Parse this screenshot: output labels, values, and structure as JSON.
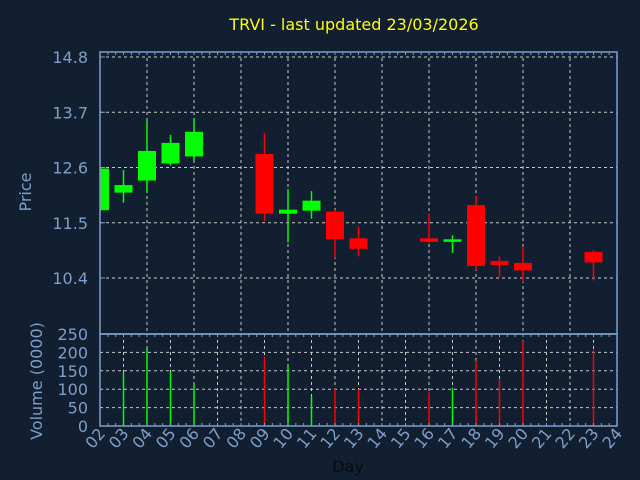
{
  "chart_data": [
    {
      "type": "candlestick",
      "title": "TRVI - last updated 23/03/2026",
      "ylabel": "Price",
      "ylim": [
        10.4,
        14.8
      ],
      "yticks": [
        "10.4",
        "11.5",
        "12.6",
        "13.7",
        "14.8"
      ],
      "grid": true,
      "colors": {
        "up": "#00ff00",
        "down": "#ff0000"
      },
      "candles": [
        {
          "day": "02",
          "open": 11.75,
          "high": 12.6,
          "low": 11.72,
          "close": 12.58
        },
        {
          "day": "03",
          "open": 12.1,
          "high": 12.55,
          "low": 11.9,
          "close": 12.25
        },
        {
          "day": "04",
          "open": 12.34,
          "high": 13.53,
          "low": 12.1,
          "close": 12.93
        },
        {
          "day": "05",
          "open": 12.68,
          "high": 13.25,
          "low": 12.64,
          "close": 13.09
        },
        {
          "day": "06",
          "open": 12.82,
          "high": 13.58,
          "low": 12.74,
          "close": 13.31
        },
        {
          "day": "09",
          "open": 12.87,
          "high": 13.29,
          "low": 11.54,
          "close": 11.68
        },
        {
          "day": "10",
          "open": 11.68,
          "high": 12.17,
          "low": 11.11,
          "close": 11.76
        },
        {
          "day": "11",
          "open": 11.74,
          "high": 12.13,
          "low": 11.58,
          "close": 11.94
        },
        {
          "day": "12",
          "open": 11.72,
          "high": 11.76,
          "low": 10.8,
          "close": 11.17
        },
        {
          "day": "13",
          "open": 11.19,
          "high": 11.42,
          "low": 10.83,
          "close": 10.98
        },
        {
          "day": "16",
          "open": 11.19,
          "high": 11.68,
          "low": 11.1,
          "close": 11.12
        },
        {
          "day": "17",
          "open": 11.12,
          "high": 11.25,
          "low": 10.9,
          "close": 11.17
        },
        {
          "day": "18",
          "open": 11.85,
          "high": 12.03,
          "low": 10.55,
          "close": 10.64
        },
        {
          "day": "19",
          "open": 10.74,
          "high": 10.83,
          "low": 10.42,
          "close": 10.66
        },
        {
          "day": "20",
          "open": 10.7,
          "high": 11.03,
          "low": 10.32,
          "close": 10.55
        },
        {
          "day": "23",
          "open": 10.92,
          "high": 10.95,
          "low": 10.35,
          "close": 10.71
        }
      ]
    },
    {
      "type": "bar",
      "ylabel": "Volume (0000)",
      "xlabel": "Day",
      "ylim": [
        0,
        250
      ],
      "yticks": [
        "0",
        "50",
        "100",
        "150",
        "200",
        "250"
      ],
      "xticks": [
        "02",
        "03",
        "04",
        "05",
        "06",
        "07",
        "08",
        "09",
        "10",
        "11",
        "12",
        "13",
        "14",
        "15",
        "16",
        "17",
        "18",
        "19",
        "20",
        "21",
        "22",
        "23",
        "24"
      ],
      "grid": true,
      "bars": [
        {
          "day": "03",
          "value": 144,
          "direction": "up"
        },
        {
          "day": "04",
          "value": 210,
          "direction": "up"
        },
        {
          "day": "05",
          "value": 148,
          "direction": "up"
        },
        {
          "day": "06",
          "value": 112,
          "direction": "up"
        },
        {
          "day": "09",
          "value": 189,
          "direction": "down"
        },
        {
          "day": "10",
          "value": 165,
          "direction": "up"
        },
        {
          "day": "11",
          "value": 80,
          "direction": "up"
        },
        {
          "day": "12",
          "value": 102,
          "direction": "down"
        },
        {
          "day": "13",
          "value": 100,
          "direction": "down"
        },
        {
          "day": "16",
          "value": 91,
          "direction": "down"
        },
        {
          "day": "17",
          "value": 104,
          "direction": "up"
        },
        {
          "day": "18",
          "value": 178,
          "direction": "down"
        },
        {
          "day": "19",
          "value": 127,
          "direction": "down"
        },
        {
          "day": "20",
          "value": 232,
          "direction": "down"
        },
        {
          "day": "23",
          "value": 207,
          "direction": "down"
        }
      ]
    }
  ]
}
